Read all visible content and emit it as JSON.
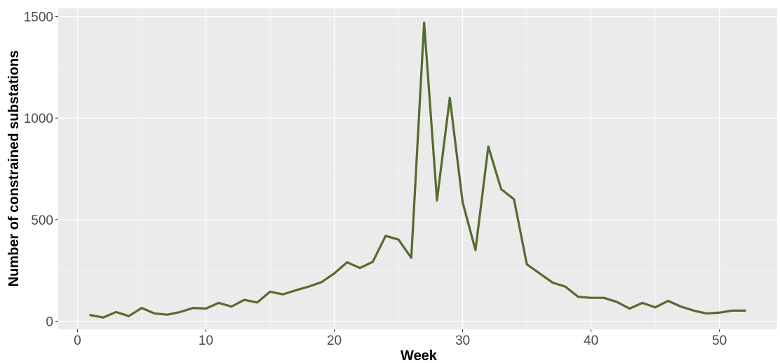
{
  "chart_data": {
    "type": "line",
    "title": "",
    "xlabel": "Week",
    "ylabel": "Number of constrained substations",
    "xlim": [
      -1.5,
      54.5
    ],
    "ylim": [
      -40,
      1540
    ],
    "x_ticks": [
      0,
      10,
      20,
      30,
      40,
      50
    ],
    "y_ticks": [
      0,
      500,
      1000,
      1500
    ],
    "x_tick_labels": [
      "0",
      "10",
      "20",
      "30",
      "40",
      "50"
    ],
    "y_tick_labels": [
      "0",
      "500",
      "1000",
      "1500"
    ],
    "grid": true,
    "legend": "none",
    "colors": {
      "panel_background": "#ebebeb",
      "grid_major": "#ffffff",
      "line": "#556b2f",
      "tick_label": "#4d4d4d",
      "axis_title": "#000000"
    },
    "series": [
      {
        "x": [
          1,
          2,
          3,
          4,
          5,
          6,
          7,
          8,
          9,
          10,
          11,
          12,
          13,
          14,
          15,
          16,
          17,
          18,
          19,
          20,
          21,
          22,
          23,
          24,
          25,
          26,
          27,
          28,
          29,
          30,
          31,
          32,
          33,
          34,
          35,
          36,
          37,
          38,
          39,
          40,
          41,
          42,
          43,
          44,
          45,
          46,
          47,
          48,
          49,
          50,
          51,
          52
        ],
        "values": [
          30,
          18,
          45,
          25,
          65,
          38,
          32,
          45,
          65,
          62,
          90,
          72,
          105,
          92,
          145,
          132,
          152,
          170,
          192,
          235,
          290,
          262,
          292,
          420,
          402,
          312,
          1470,
          595,
          1100,
          585,
          350,
          860,
          650,
          600,
          280,
          235,
          190,
          170,
          120,
          115,
          115,
          95,
          62,
          90,
          68,
          100,
          72,
          52,
          38,
          42,
          52,
          52
        ]
      }
    ]
  }
}
